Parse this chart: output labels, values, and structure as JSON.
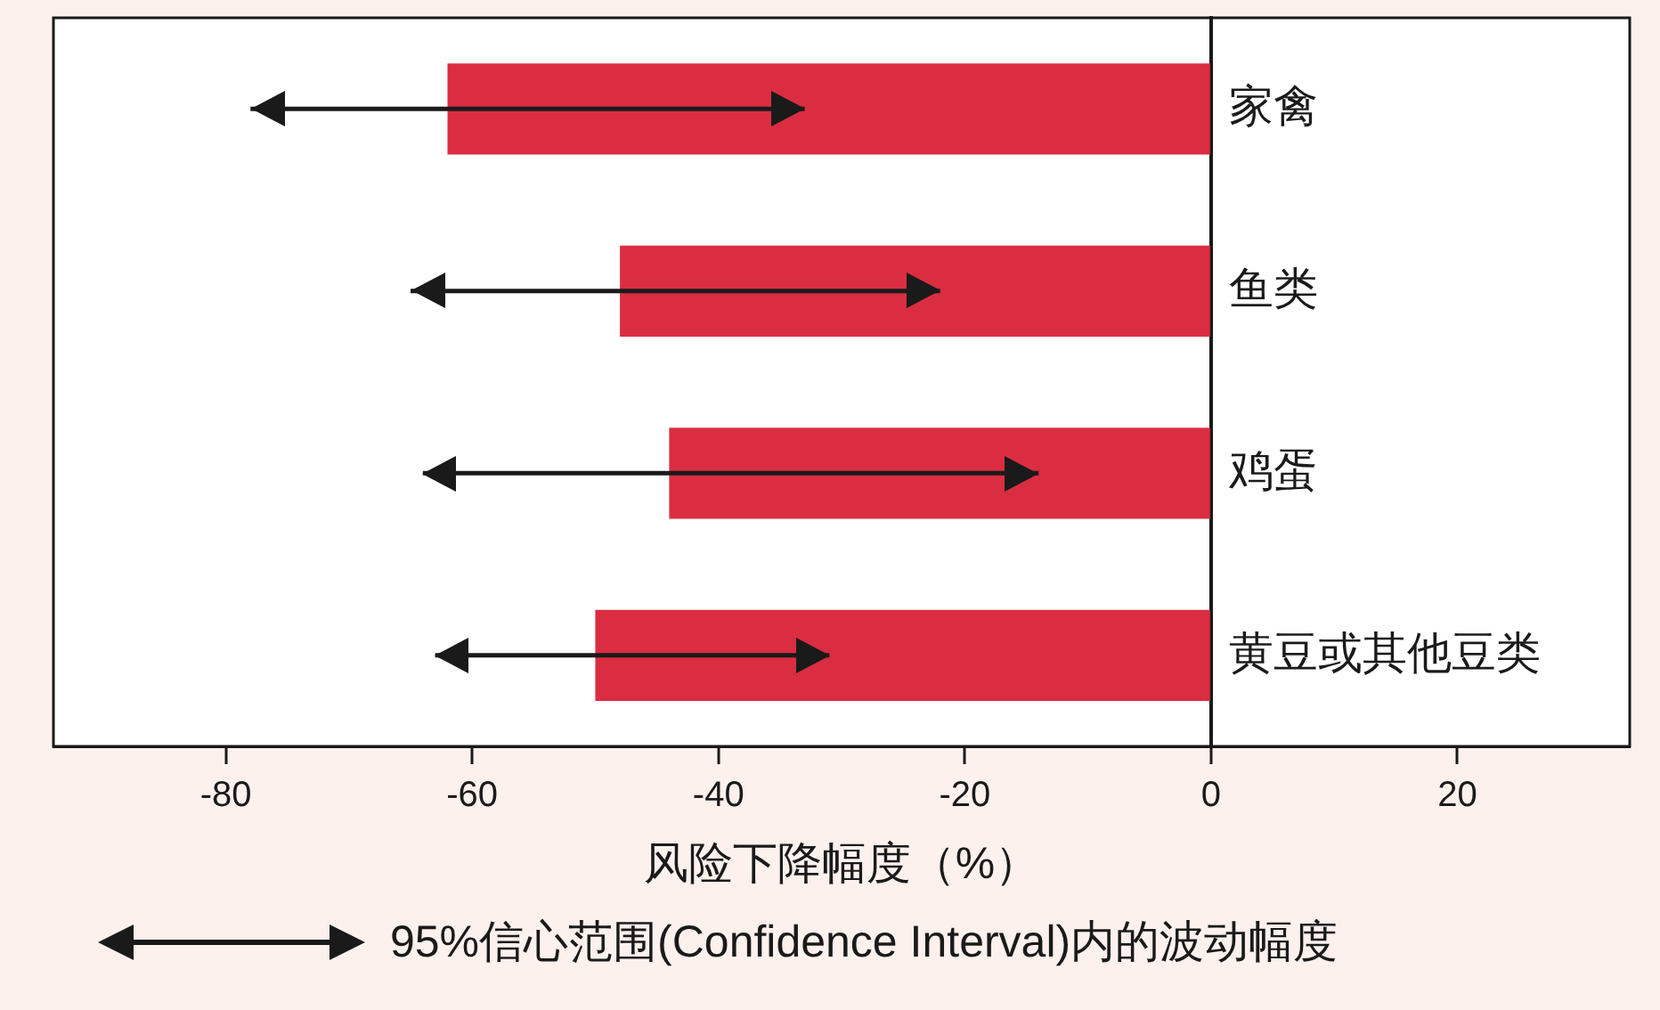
{
  "chart_data": {
    "type": "bar",
    "orientation": "horizontal",
    "xlabel": "风险下降幅度（%）",
    "categories": [
      "家禽",
      "鱼类",
      "鸡蛋",
      "黄豆或其他豆类"
    ],
    "values": [
      -62,
      -48,
      -44,
      -50
    ],
    "errors": [
      [
        -78,
        -33
      ],
      [
        -65,
        -22
      ],
      [
        -64,
        -14
      ],
      [
        -63,
        -31
      ]
    ],
    "color": "#da2d41",
    "xlim": [
      -94,
      34
    ],
    "xticks": [
      -80,
      -60,
      -40,
      -20,
      0,
      20
    ],
    "grid": false,
    "legend": false,
    "annotations": [
      "95%信心范围(Confidence Interval)内的波动幅度"
    ]
  }
}
